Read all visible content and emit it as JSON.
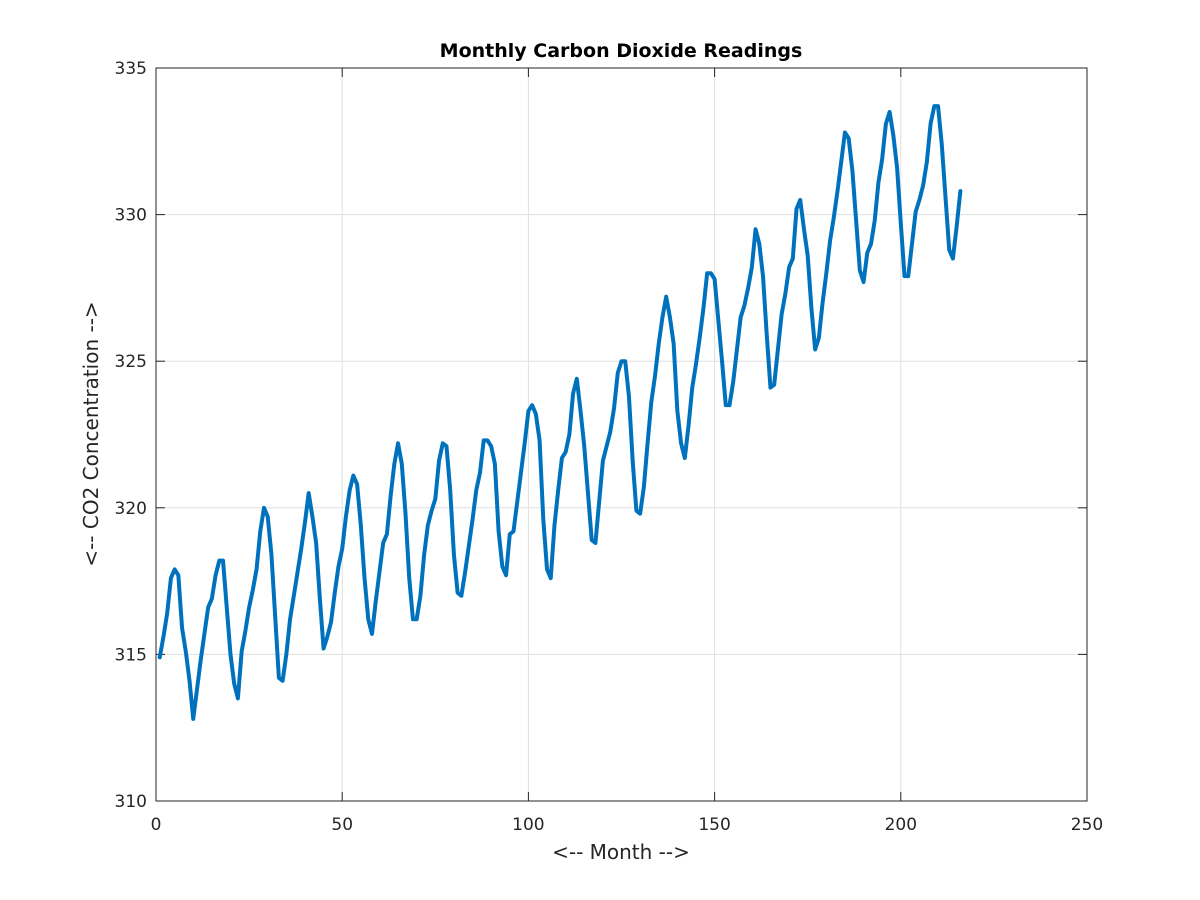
{
  "chart_data": {
    "type": "line",
    "title": "Monthly Carbon Dioxide Readings",
    "xlabel": "<-- Month -->",
    "ylabel": "<-- CO2 Concentration -->",
    "xlim": [
      0,
      250
    ],
    "ylim": [
      310,
      335
    ],
    "xticks": [
      0,
      50,
      100,
      150,
      200,
      250
    ],
    "yticks": [
      310,
      315,
      320,
      325,
      330,
      335
    ],
    "grid": true,
    "series_color": "#0072BD",
    "x": [
      1,
      2,
      3,
      4,
      5,
      6,
      7,
      8,
      9,
      10,
      11,
      12,
      13,
      14,
      15,
      16,
      17,
      18,
      19,
      20,
      21,
      22,
      23,
      24,
      25,
      26,
      27,
      28,
      29,
      30,
      31,
      32,
      33,
      34,
      35,
      36,
      37,
      38,
      39,
      40,
      41,
      42,
      43,
      44,
      45,
      46,
      47,
      48,
      49,
      50,
      51,
      52,
      53,
      54,
      55,
      56,
      57,
      58,
      59,
      60,
      61,
      62,
      63,
      64,
      65,
      66,
      67,
      68,
      69,
      70,
      71,
      72,
      73,
      74,
      75,
      76,
      77,
      78,
      79,
      80,
      81,
      82,
      83,
      84,
      85,
      86,
      87,
      88,
      89,
      90,
      91,
      92,
      93,
      94,
      95,
      96,
      97,
      98,
      99,
      100,
      101,
      102,
      103,
      104,
      105,
      106,
      107,
      108,
      109,
      110,
      111,
      112,
      113,
      114,
      115,
      116,
      117,
      118,
      119,
      120,
      121,
      122,
      123,
      124,
      125,
      126,
      127,
      128,
      129,
      130,
      131,
      132,
      133,
      134,
      135,
      136,
      137,
      138,
      139,
      140,
      141,
      142,
      143,
      144,
      145,
      146,
      147,
      148,
      149,
      150,
      151,
      152,
      153,
      154,
      155,
      156,
      157,
      158,
      159,
      160,
      161,
      162,
      163,
      164,
      165,
      166,
      167,
      168,
      169,
      170,
      171,
      172,
      173,
      174,
      175,
      176,
      177,
      178,
      179,
      180,
      181,
      182,
      183,
      184,
      185,
      186,
      187,
      188,
      189,
      190,
      191,
      192,
      193,
      194,
      195,
      196,
      197,
      198,
      199,
      200,
      201,
      202,
      203,
      204,
      205,
      206,
      207,
      208,
      209,
      210,
      211,
      212,
      213,
      214,
      215,
      216
    ],
    "series": [
      {
        "values": [
          314.9,
          315.6,
          316.4,
          317.6,
          317.9,
          317.7,
          315.9,
          315.1,
          314.1,
          312.8,
          313.8,
          314.8,
          315.7,
          316.6,
          316.9,
          317.7,
          318.2,
          318.2,
          316.6,
          315.0,
          314.0,
          313.5,
          315.1,
          315.8,
          316.6,
          317.2,
          317.9,
          319.2,
          320.0,
          319.7,
          318.4,
          316.3,
          314.2,
          314.1,
          315.0,
          316.2,
          317.0,
          317.8,
          318.6,
          319.5,
          320.5,
          319.7,
          318.8,
          316.9,
          315.2,
          315.6,
          316.1,
          317.1,
          318.0,
          318.6,
          319.7,
          320.6,
          321.1,
          320.8,
          319.4,
          317.6,
          316.2,
          315.7,
          316.8,
          317.8,
          318.8,
          319.1,
          320.4,
          321.5,
          322.2,
          321.5,
          319.8,
          317.6,
          316.2,
          316.2,
          317.0,
          318.4,
          319.4,
          319.9,
          320.3,
          321.6,
          322.2,
          322.1,
          320.6,
          318.4,
          317.1,
          317.0,
          317.8,
          318.7,
          319.6,
          320.6,
          321.2,
          322.3,
          322.3,
          322.1,
          321.5,
          319.2,
          318.0,
          317.7,
          319.1,
          319.2,
          320.2,
          321.2,
          322.2,
          323.3,
          323.5,
          323.2,
          322.3,
          319.6,
          317.9,
          317.6,
          319.4,
          320.6,
          321.7,
          321.9,
          322.5,
          323.9,
          324.4,
          323.3,
          322.1,
          320.5,
          318.9,
          318.8,
          320.2,
          321.6,
          322.1,
          322.6,
          323.4,
          324.6,
          325.0,
          325.0,
          323.8,
          321.6,
          319.9,
          319.8,
          320.7,
          322.2,
          323.6,
          324.5,
          325.6,
          326.5,
          327.2,
          326.5,
          325.6,
          323.3,
          322.2,
          321.7,
          322.8,
          324.1,
          324.9,
          325.8,
          326.8,
          328.0,
          328.0,
          327.8,
          326.4,
          325.0,
          323.5,
          323.5,
          324.3,
          325.4,
          326.5,
          326.9,
          327.5,
          328.2,
          329.5,
          329.0,
          327.9,
          325.9,
          324.1,
          324.2,
          325.4,
          326.6,
          327.3,
          328.2,
          328.5,
          330.2,
          330.5,
          329.5,
          328.6,
          326.8,
          325.4,
          325.8,
          327.0,
          328.0,
          329.1,
          329.9,
          330.8,
          331.8,
          332.8,
          332.6,
          331.5,
          329.8,
          328.1,
          327.7,
          328.7,
          329.0,
          329.8,
          331.1,
          331.9,
          333.1,
          333.5,
          332.7,
          331.6,
          329.7,
          327.9,
          327.9,
          329.0,
          330.1,
          330.5,
          331.0,
          331.8,
          333.1,
          333.7,
          333.7,
          332.4,
          330.6,
          328.8,
          328.5,
          329.6,
          330.8
        ]
      }
    ]
  }
}
